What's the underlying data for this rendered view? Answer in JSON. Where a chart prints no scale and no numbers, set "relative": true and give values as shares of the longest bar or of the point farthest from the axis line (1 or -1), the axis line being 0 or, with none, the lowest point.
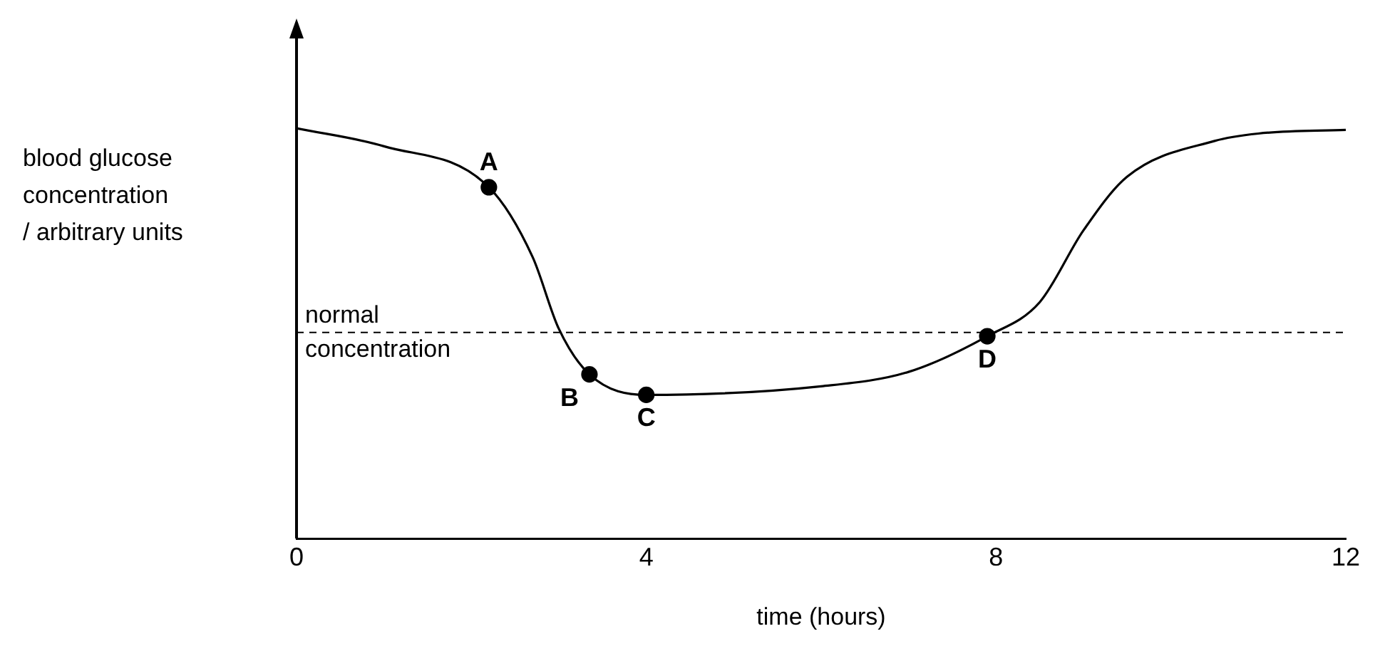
{
  "chart_data": {
    "type": "line",
    "relative": true,
    "xlabel": "time (hours)",
    "ylabel": "blood glucose\nconcentration\n/ arbitrary units",
    "xlim": [
      0,
      12
    ],
    "xticks": [
      0,
      4,
      8,
      12
    ],
    "grid": false,
    "legend": false,
    "series": [
      {
        "color": "#000000",
        "marker": "none",
        "line_style": "solid",
        "x": [
          0,
          1,
          2.2,
          2.7,
          3.0,
          3.35,
          4,
          6,
          7,
          7.9,
          8.5,
          9,
          9.5,
          10.5,
          11,
          12
        ],
        "values": [
          1.0,
          0.956,
          0.856,
          0.686,
          0.511,
          0.4,
          0.35,
          0.371,
          0.406,
          0.493,
          0.576,
          0.751,
          0.882,
          0.969,
          0.987,
          0.996
        ]
      },
      {
        "type": "scatter",
        "color": "#000000",
        "marker": "circle",
        "x": [
          2.2,
          3.35,
          4,
          7.9
        ],
        "values": [
          0.856,
          0.4,
          0.35,
          0.493
        ]
      }
    ],
    "ref_lines": [
      {
        "axis": "y",
        "value": 0.502,
        "label": "normal\nconcentration",
        "line_style": "dashed",
        "color": "#000000"
      }
    ],
    "annotations": [
      {
        "text": "A",
        "x": 2.2,
        "y": 0.856
      },
      {
        "text": "B",
        "x": 3.35,
        "y": 0.4
      },
      {
        "text": "C",
        "x": 4,
        "y": 0.35
      },
      {
        "text": "D",
        "x": 7.9,
        "y": 0.493
      }
    ]
  }
}
